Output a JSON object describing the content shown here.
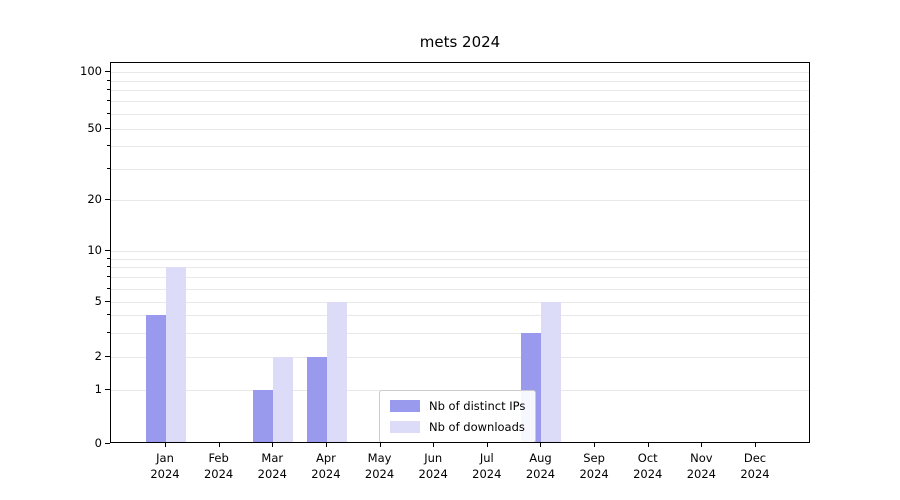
{
  "chart_data": {
    "type": "bar",
    "title": "mets 2024",
    "yscale": "symlog",
    "ylim": [
      0,
      100
    ],
    "grid": true,
    "legend_position": "inside-bottom-center",
    "categories": [
      "Jan",
      "Feb",
      "Mar",
      "Apr",
      "May",
      "Jun",
      "Jul",
      "Aug",
      "Sep",
      "Oct",
      "Nov",
      "Dec"
    ],
    "year_label": "2024",
    "yticks": [
      0,
      1,
      2,
      5,
      10,
      20,
      50,
      100
    ],
    "series": [
      {
        "name": "Nb of distinct IPs",
        "color": "#9999ee",
        "values": [
          4,
          0,
          1,
          2,
          0,
          0,
          0,
          3,
          0,
          0,
          0,
          0
        ]
      },
      {
        "name": "Nb of downloads",
        "color": "#dcdcf8",
        "values": [
          8,
          0,
          2,
          5,
          0,
          0,
          0,
          5,
          0,
          0,
          0,
          0
        ]
      }
    ]
  }
}
